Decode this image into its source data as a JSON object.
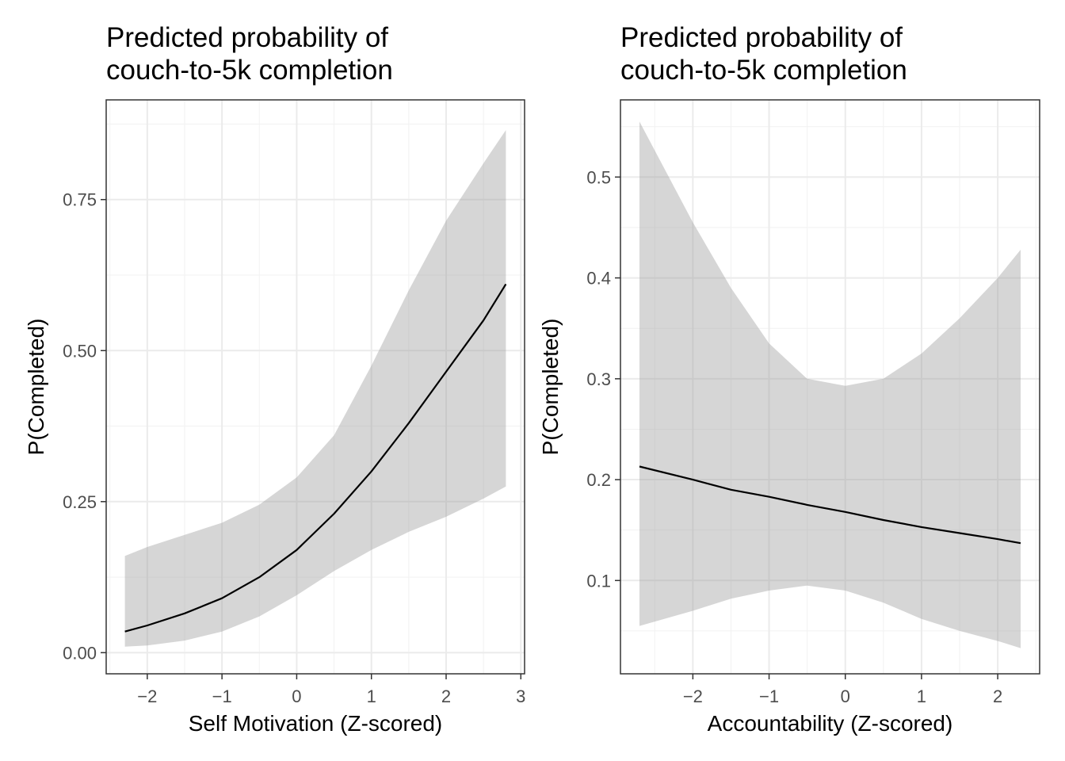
{
  "chart_data": [
    {
      "type": "line",
      "title": "Predicted probability of\ncouch-to-5k completion",
      "xlabel": "Self Motivation (Z-scored)",
      "ylabel": "P(Completed)",
      "xlim": [
        -2.55,
        3.05
      ],
      "ylim": [
        -0.035,
        0.915
      ],
      "x_ticks": [
        -2,
        -1,
        0,
        1,
        2,
        3
      ],
      "x_tick_labels": [
        "-2",
        "-1",
        "0",
        "1",
        "2",
        "3"
      ],
      "y_ticks": [
        0,
        0.25,
        0.5,
        0.75
      ],
      "y_tick_labels": [
        "0.00",
        "0.25",
        "0.50",
        "0.75"
      ],
      "grid": true,
      "series": [
        {
          "x": [
            -2.3,
            -2.0,
            -1.5,
            -1.0,
            -0.5,
            0.0,
            0.5,
            1.0,
            1.5,
            2.0,
            2.5,
            2.8
          ],
          "y": [
            0.035,
            0.045,
            0.065,
            0.09,
            0.125,
            0.17,
            0.23,
            0.3,
            0.38,
            0.465,
            0.55,
            0.61
          ],
          "lower": [
            0.01,
            0.012,
            0.02,
            0.035,
            0.06,
            0.095,
            0.135,
            0.17,
            0.2,
            0.225,
            0.255,
            0.275
          ],
          "upper": [
            0.16,
            0.175,
            0.195,
            0.215,
            0.245,
            0.29,
            0.36,
            0.475,
            0.6,
            0.715,
            0.81,
            0.865
          ]
        }
      ]
    },
    {
      "type": "line",
      "title": "Predicted probability of\ncouch-to-5k completion",
      "xlabel": "Accountability (Z-scored)",
      "ylabel": "P(Completed)",
      "xlim": [
        -2.95,
        2.55
      ],
      "ylim": [
        0.0075,
        0.5765
      ],
      "x_ticks": [
        -2,
        -1,
        0,
        1,
        2
      ],
      "x_tick_labels": [
        "-2",
        "-1",
        "0",
        "1",
        "2"
      ],
      "y_ticks": [
        0.1,
        0.2,
        0.3,
        0.4,
        0.5
      ],
      "y_tick_labels": [
        "0.1",
        "0.2",
        "0.3",
        "0.4",
        "0.5"
      ],
      "grid": true,
      "series": [
        {
          "x": [
            -2.7,
            -2.0,
            -1.5,
            -1.0,
            -0.5,
            0.0,
            0.5,
            1.0,
            1.5,
            2.0,
            2.3
          ],
          "y": [
            0.213,
            0.2,
            0.19,
            0.183,
            0.175,
            0.168,
            0.16,
            0.153,
            0.147,
            0.141,
            0.137
          ],
          "lower": [
            0.055,
            0.07,
            0.082,
            0.09,
            0.095,
            0.09,
            0.078,
            0.062,
            0.05,
            0.04,
            0.033
          ],
          "upper": [
            0.555,
            0.455,
            0.39,
            0.335,
            0.3,
            0.293,
            0.3,
            0.325,
            0.36,
            0.4,
            0.428
          ]
        }
      ]
    }
  ]
}
